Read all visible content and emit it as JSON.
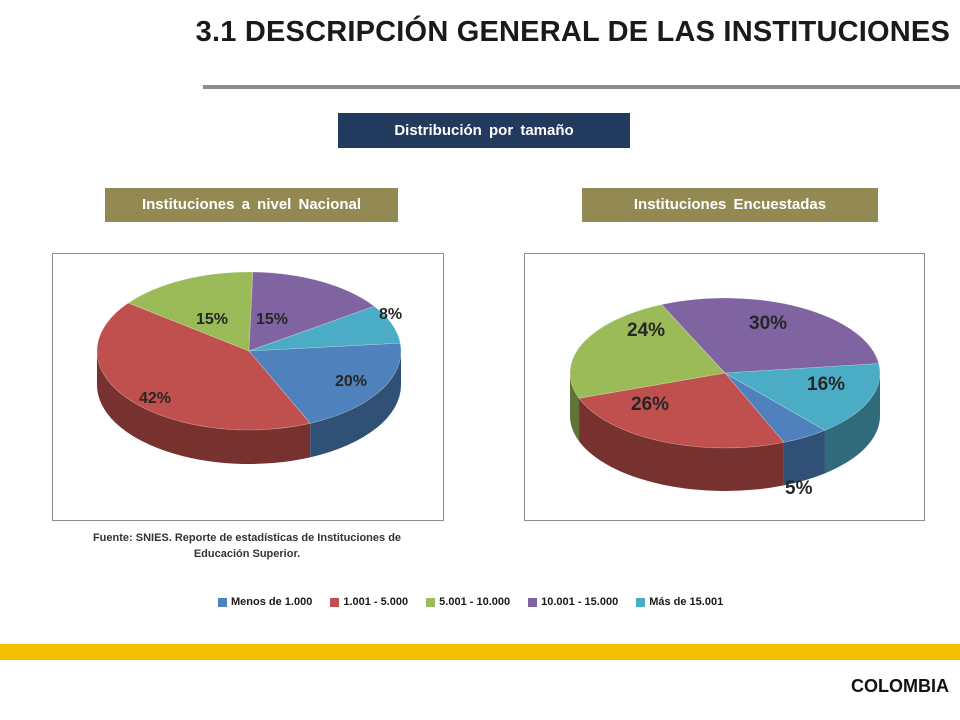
{
  "title": "3.1 DESCRIPCIÓN GENERAL DE LAS INSTITUCIONES",
  "distribution_label": "Distribución por tamaño",
  "source_note_line1": "Fuente: SNIES. Reporte de estadísticas de Instituciones de",
  "source_note_line2": "Educación Superior.",
  "footer": {
    "country": "COLOMBIA"
  },
  "colors": {
    "navy_box": "#223a5e",
    "olive_box": "#938953",
    "yellow_bar": "#f5c000",
    "title_rule": "#8c8c8c"
  },
  "legend": [
    {
      "label": "Menos de 1.000",
      "color": "#4f81bd"
    },
    {
      "label": "1.001 - 5.000",
      "color": "#c0504d"
    },
    {
      "label": "5.001 - 10.000",
      "color": "#9bbb59"
    },
    {
      "label": "10.001 - 15.000",
      "color": "#8064a2"
    },
    {
      "label": "Más de 15.001",
      "color": "#4bacc6"
    }
  ],
  "chart_data": [
    {
      "type": "pie",
      "title": "Instituciones  a nivel Nacional",
      "categories": [
        "Menos de 1.000",
        "1.001 - 5.000",
        "5.001 - 10.000",
        "10.001 - 15.000",
        "Más de 15.001"
      ],
      "values": [
        20,
        42,
        15,
        15,
        8
      ],
      "value_labels": [
        "20%",
        "42%",
        "15%",
        "15%",
        "8%"
      ]
    },
    {
      "type": "pie",
      "title": "Instituciones  Encuestadas",
      "categories": [
        "Menos de 1.000",
        "1.001 - 5.000",
        "5.001 - 10.000",
        "10.001 - 15.000",
        "Más de 15.001"
      ],
      "values": [
        5,
        26,
        24,
        30,
        16
      ],
      "value_labels": [
        "5%",
        "26%",
        "24%",
        "30%",
        "16%"
      ]
    }
  ]
}
